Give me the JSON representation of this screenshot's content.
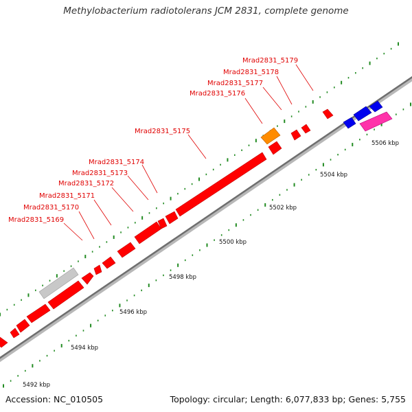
{
  "title": "Methylobacterium radiotolerans JCM 2831, complete genome",
  "footer": {
    "accession": "Accession: NC_010505",
    "stats": "Topology: circular; Length: 6,077,833 bp; Genes: 5,755"
  },
  "ticks": [
    {
      "label": "5492 kbp",
      "kbp": 5492
    },
    {
      "label": "5494 kbp",
      "kbp": 5494
    },
    {
      "label": "5496 kbp",
      "kbp": 5496
    },
    {
      "label": "5498 kbp",
      "kbp": 5498
    },
    {
      "label": "5500 kbp",
      "kbp": 5500
    },
    {
      "label": "5502 kbp",
      "kbp": 5502
    },
    {
      "label": "5504 kbp",
      "kbp": 5504
    },
    {
      "label": "5506 kbp",
      "kbp": 5506
    }
  ],
  "gene_labels": [
    {
      "text": "Mrad2831_5169"
    },
    {
      "text": "Mrad2831_5170"
    },
    {
      "text": "Mrad2831_5171"
    },
    {
      "text": "Mrad2831_5172"
    },
    {
      "text": "Mrad2831_5173"
    },
    {
      "text": "Mrad2831_5174"
    },
    {
      "text": "Mrad2831_5175"
    },
    {
      "text": "Mrad2831_5176"
    },
    {
      "text": "Mrad2831_5177"
    },
    {
      "text": "Mrad2831_5178"
    },
    {
      "text": "Mrad2831_5179"
    }
  ],
  "colors": {
    "cds": "#ff0000",
    "cds_border": "#b00000",
    "rna": "#ff8c00",
    "other_strand": "#0000ff",
    "pink": "#ff33aa",
    "grey": "#c8c8c8",
    "tick": "#228b22",
    "backbone": "#777777",
    "label": "#e00000"
  }
}
